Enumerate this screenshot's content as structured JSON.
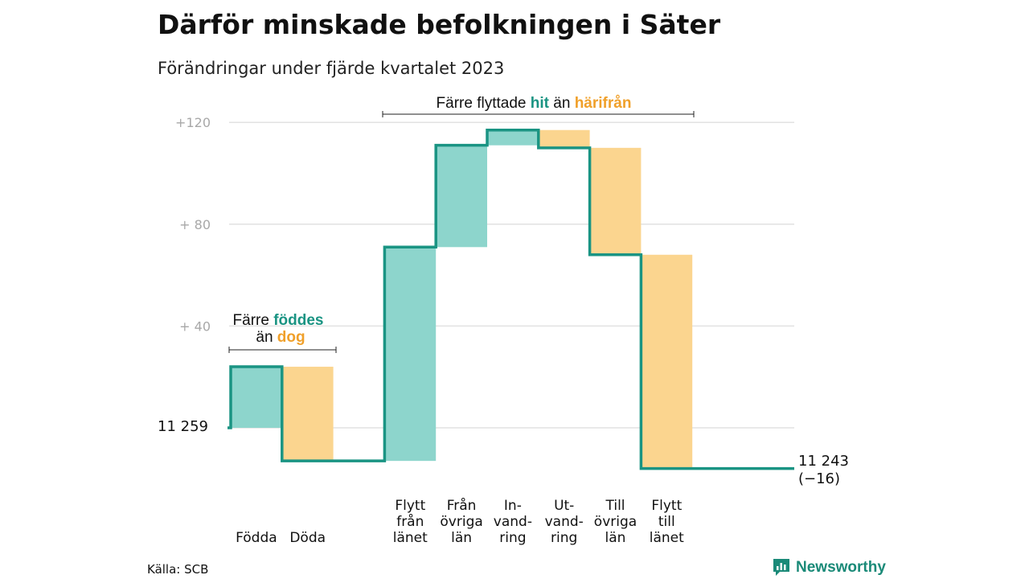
{
  "chart_data": {
    "type": "waterfall",
    "title": "Därför minskade befolkningen i Säter",
    "subtitle": "Förändringar under fjärde kvartalet 2023",
    "start_value": 11259,
    "start_label": "11 259",
    "end_value": 11243,
    "end_label": "11 243",
    "end_change_label": "(−16)",
    "y_ticks": [
      {
        "value": 120,
        "label": "+120"
      },
      {
        "value": 80,
        "label": "+  80"
      },
      {
        "value": 40,
        "label": "+  40"
      }
    ],
    "ylim": [
      -16,
      120
    ],
    "steps": [
      {
        "key": "fodda",
        "label_lines": [
          "Födda"
        ],
        "change": 24,
        "kind": "in"
      },
      {
        "key": "doda",
        "label_lines": [
          "Döda"
        ],
        "change": -37,
        "kind": "out"
      },
      {
        "key": "flytt_fran_lanet",
        "label_lines": [
          "Flytt",
          "från",
          "länet"
        ],
        "change": 84,
        "kind": "in"
      },
      {
        "key": "fran_ovriga_lan",
        "label_lines": [
          "Från",
          "övriga",
          "län"
        ],
        "change": 40,
        "kind": "in"
      },
      {
        "key": "invandring",
        "label_lines": [
          "In-",
          "vand-",
          "ring"
        ],
        "change": 6,
        "kind": "in"
      },
      {
        "key": "utvandring",
        "label_lines": [
          "Ut-",
          "vand-",
          "ring"
        ],
        "change": -7,
        "kind": "out"
      },
      {
        "key": "till_ovriga_lan",
        "label_lines": [
          "Till",
          "övriga",
          "län"
        ],
        "change": -42,
        "kind": "out"
      },
      {
        "key": "flytt_till_lanet",
        "label_lines": [
          "Flytt",
          "till",
          "länet"
        ],
        "change": -84,
        "kind": "out"
      }
    ],
    "annotations": {
      "births": {
        "line1_pre": "Färre ",
        "line1_hl": "föddes",
        "line2_pre": "än ",
        "line2_hl": "dog"
      },
      "moves": {
        "pre": "Färre flyttade ",
        "hl1": "hit",
        "mid": " än ",
        "hl2": "härifrån"
      }
    },
    "colors": {
      "in": "#8dd5cc",
      "out": "#fbd58f",
      "line": "#1a9483",
      "grid": "#e2e2e2",
      "highlight_in": "#1a9483",
      "highlight_out": "#f0a02a"
    }
  },
  "footer": {
    "source": "Källa: SCB",
    "brand": "Newsworthy",
    "brand_icon": "bar-chart-speech-icon"
  }
}
